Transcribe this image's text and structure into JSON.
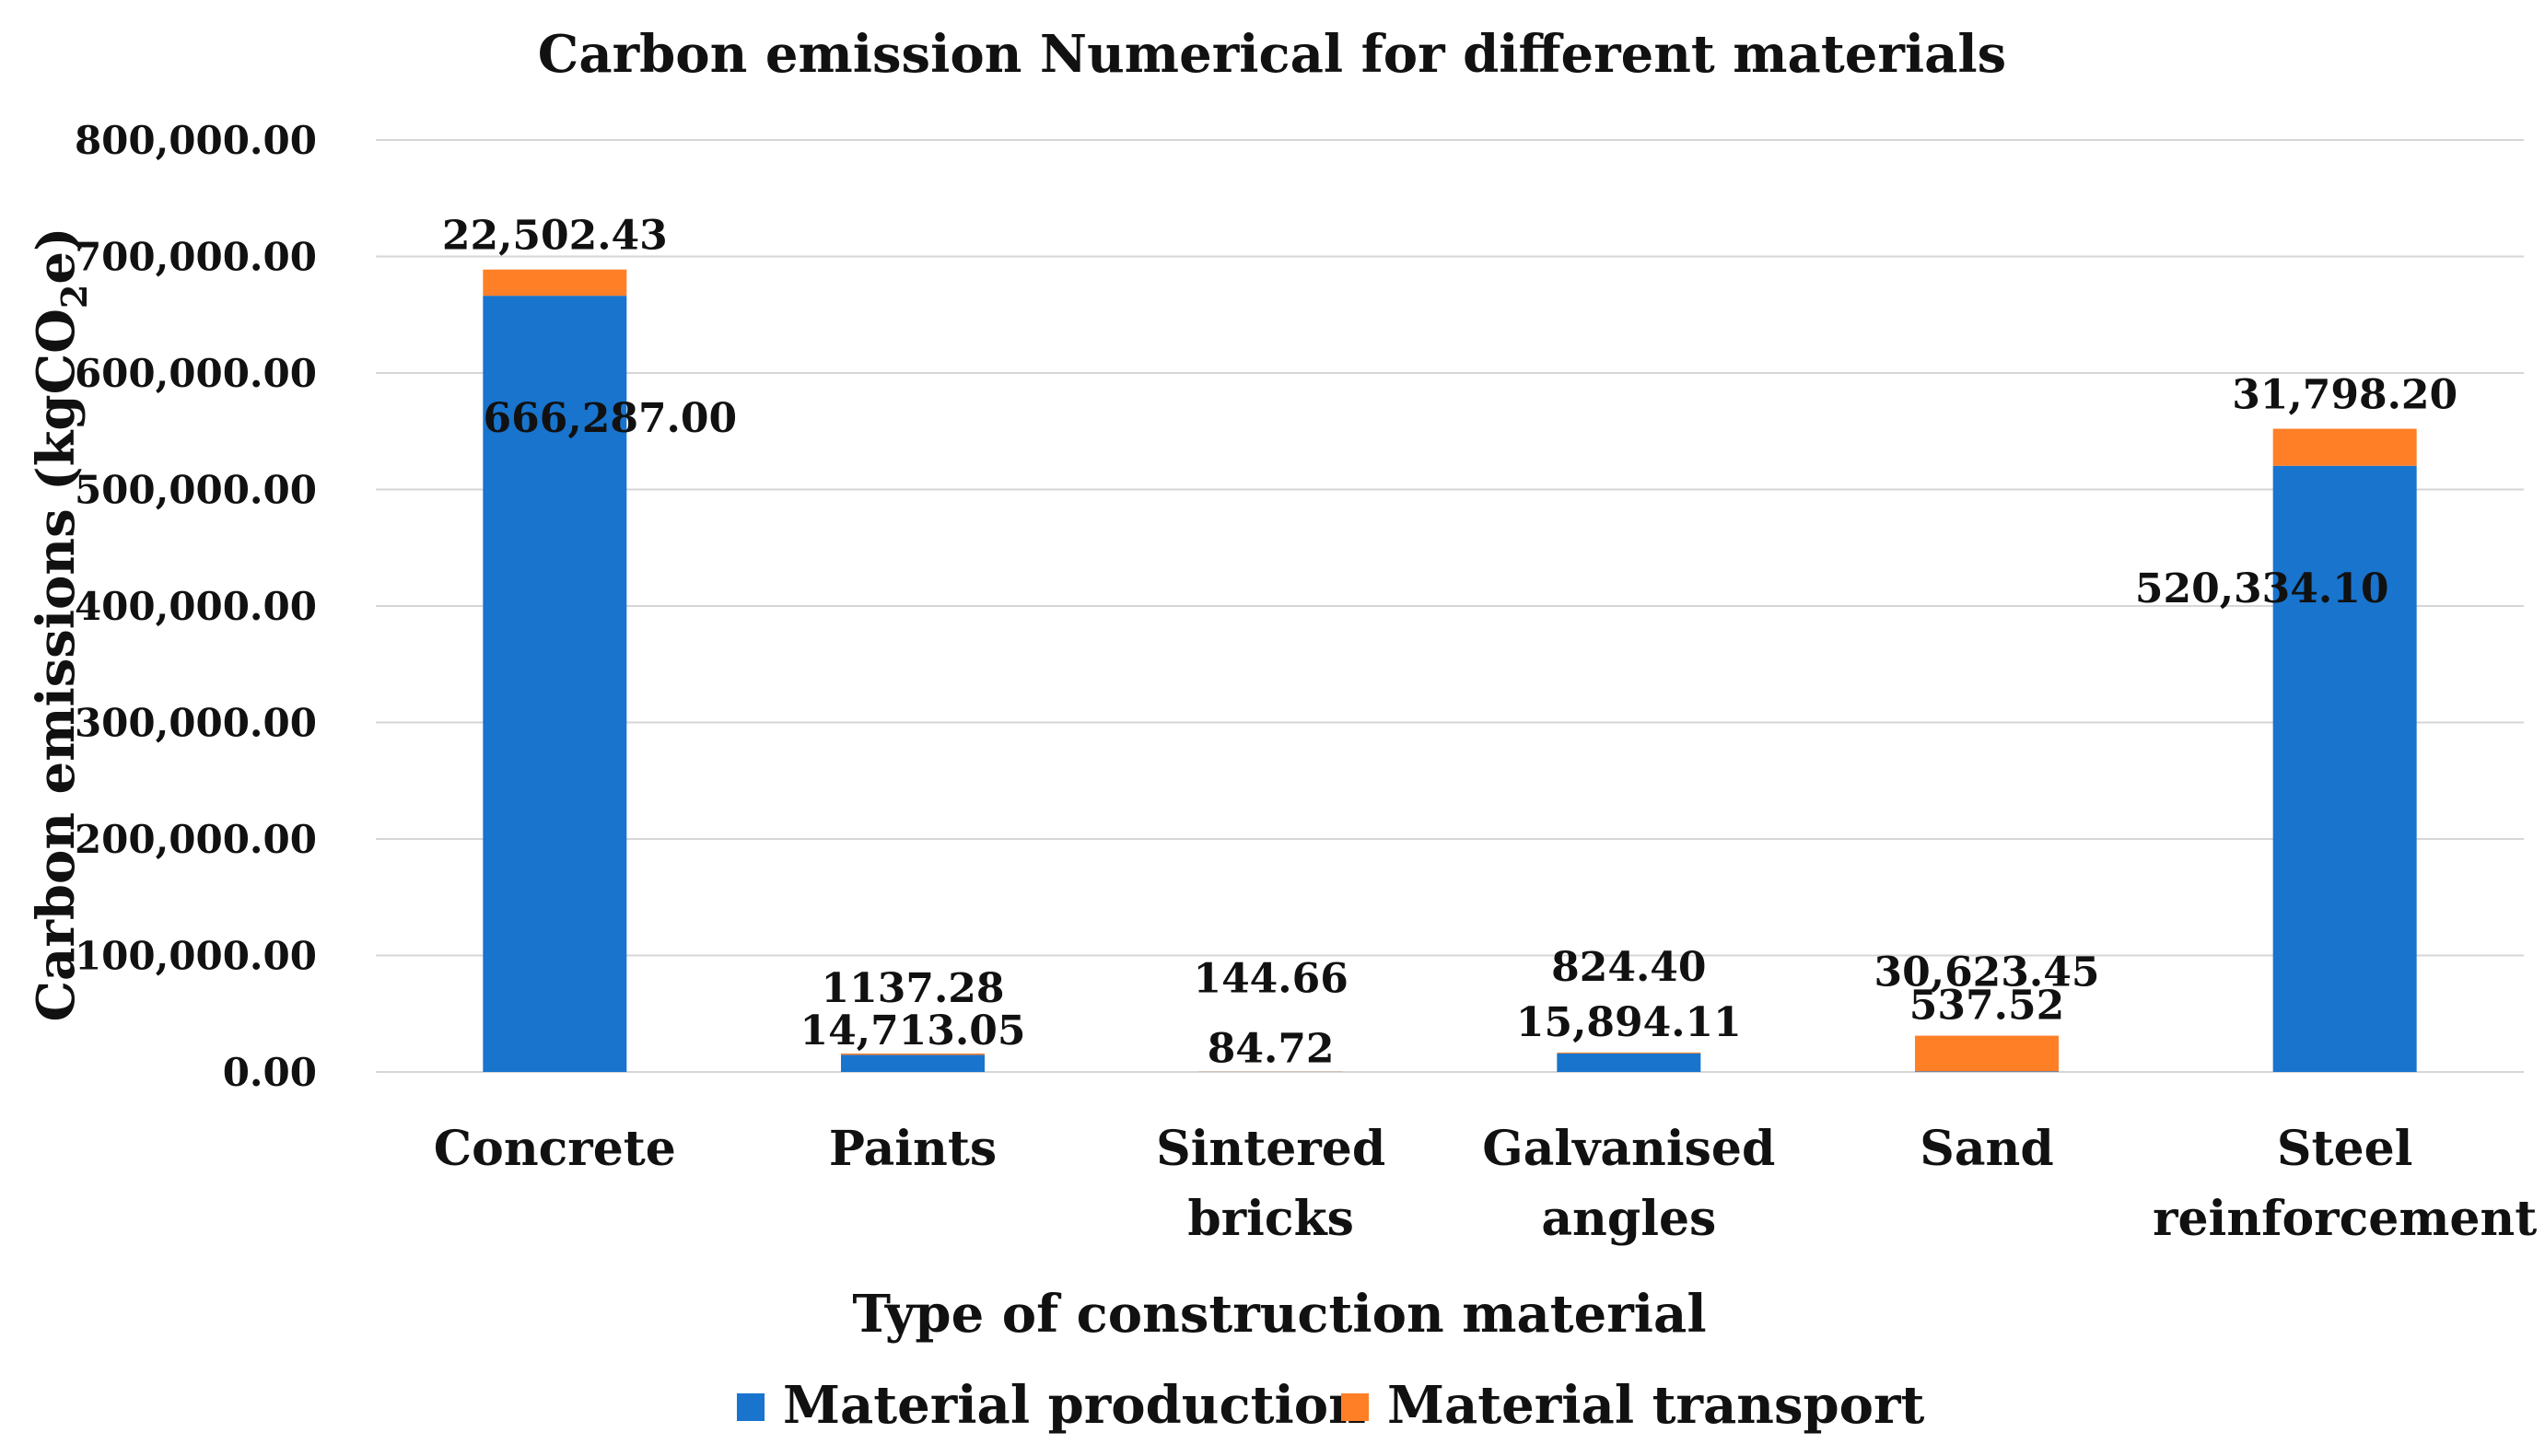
{
  "chart_data": {
    "type": "bar",
    "stacked": true,
    "title": "Carbon emission Numerical for different materials",
    "xlabel": "Type of construction material",
    "ylabel": "Carbon emissions  (kgCO2e)",
    "ylabel_parts": {
      "main": "Carbon emissions  (kgCO",
      "subscript": "2",
      "suffix": "e)"
    },
    "ylim": [
      0,
      800000
    ],
    "y_ticks": [
      0,
      100000,
      200000,
      300000,
      400000,
      500000,
      600000,
      700000,
      800000
    ],
    "y_tick_labels": [
      "0.00",
      "100,000.00",
      "200,000.00",
      "300,000.00",
      "400,000.00",
      "500,000.00",
      "600,000.00",
      "700,000.00",
      "800,000.00"
    ],
    "grid": true,
    "legend_position": "bottom",
    "categories": [
      [
        "Concrete"
      ],
      [
        "Paints"
      ],
      [
        "Sintered",
        "bricks"
      ],
      [
        "Galvanised",
        "angles"
      ],
      [
        "Sand"
      ],
      [
        "Steel",
        "reinforcement"
      ]
    ],
    "series": [
      {
        "name": "Material production",
        "color": "#1874CD",
        "values": [
          666287.0,
          14713.05,
          84.72,
          15894.11,
          537.52,
          520334.1
        ],
        "labels": [
          "666,287.00",
          "14,713.05",
          "84.72",
          "15,894.11",
          "537.52",
          "520,334.10"
        ]
      },
      {
        "name": "Material transport",
        "color": "#FF7F27",
        "values": [
          22502.43,
          1137.28,
          144.66,
          824.4,
          30623.45,
          31798.2
        ],
        "labels": [
          "22,502.43",
          "1137.28",
          "144.66",
          "824.40",
          "30,623.45",
          "31,798.20"
        ]
      }
    ]
  }
}
